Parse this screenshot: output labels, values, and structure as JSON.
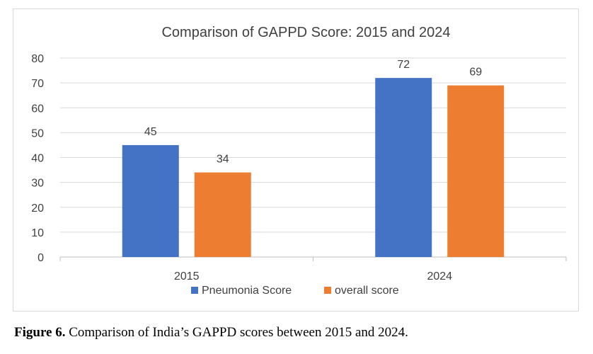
{
  "chart_data": {
    "type": "bar",
    "title": "Comparison of GAPPD Score: 2015 and 2024",
    "categories": [
      "2015",
      "2024"
    ],
    "series": [
      {
        "name": "Pneumonia Score",
        "values": [
          45,
          72
        ],
        "color": "#4472C4"
      },
      {
        "name": "overall score",
        "values": [
          34,
          69
        ],
        "color": "#ED7D31"
      }
    ],
    "xlabel": "",
    "ylabel": "",
    "ylim": [
      0,
      80
    ],
    "yticks": [
      0,
      10,
      20,
      30,
      40,
      50,
      60,
      70,
      80
    ],
    "grid": true,
    "legend": "bottom"
  },
  "caption": {
    "label": "Figure 6.",
    "text": " Comparison of India’s GAPPD scores between 2015 and 2024."
  }
}
